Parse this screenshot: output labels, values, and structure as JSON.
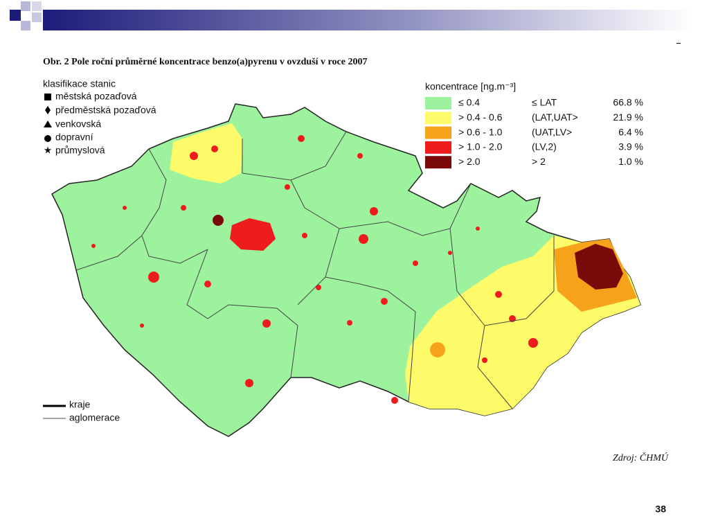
{
  "title": "Obr. 2 Pole roční průměrné koncentrace benzo(a)pyrenu v ovzduší v roce 2007",
  "stations": {
    "title": "klasifikace stanic",
    "items": [
      "městská pozaďová",
      "předměstská pozaďová",
      "venkovská",
      "dopravní",
      "průmyslová"
    ]
  },
  "concentration": {
    "title": "koncentrace [ng.m⁻³]",
    "rows": [
      {
        "color": "#9df29d",
        "range": "≤ 0.4",
        "class": "≤ LAT",
        "share": "66.8 %"
      },
      {
        "color": "#fdfb6a",
        "range": "> 0.4 - 0.6",
        "class": "(LAT,UAT>",
        "share": "21.9 %"
      },
      {
        "color": "#f7a21b",
        "range": "> 0.6 - 1.0",
        "class": "(UAT,LV>",
        "share": "6.4 %"
      },
      {
        "color": "#ee1c1c",
        "range": "> 1.0 - 2.0",
        "class": "(LV,2)",
        "share": "3.9 %"
      },
      {
        "color": "#7a0a0a",
        "range": "> 2.0",
        "class": "> 2",
        "share": "1.0 %"
      }
    ]
  },
  "lines": [
    "kraje",
    "aglomerace"
  ],
  "source": "Zdroj: ČHMÚ",
  "page_number": "38"
}
